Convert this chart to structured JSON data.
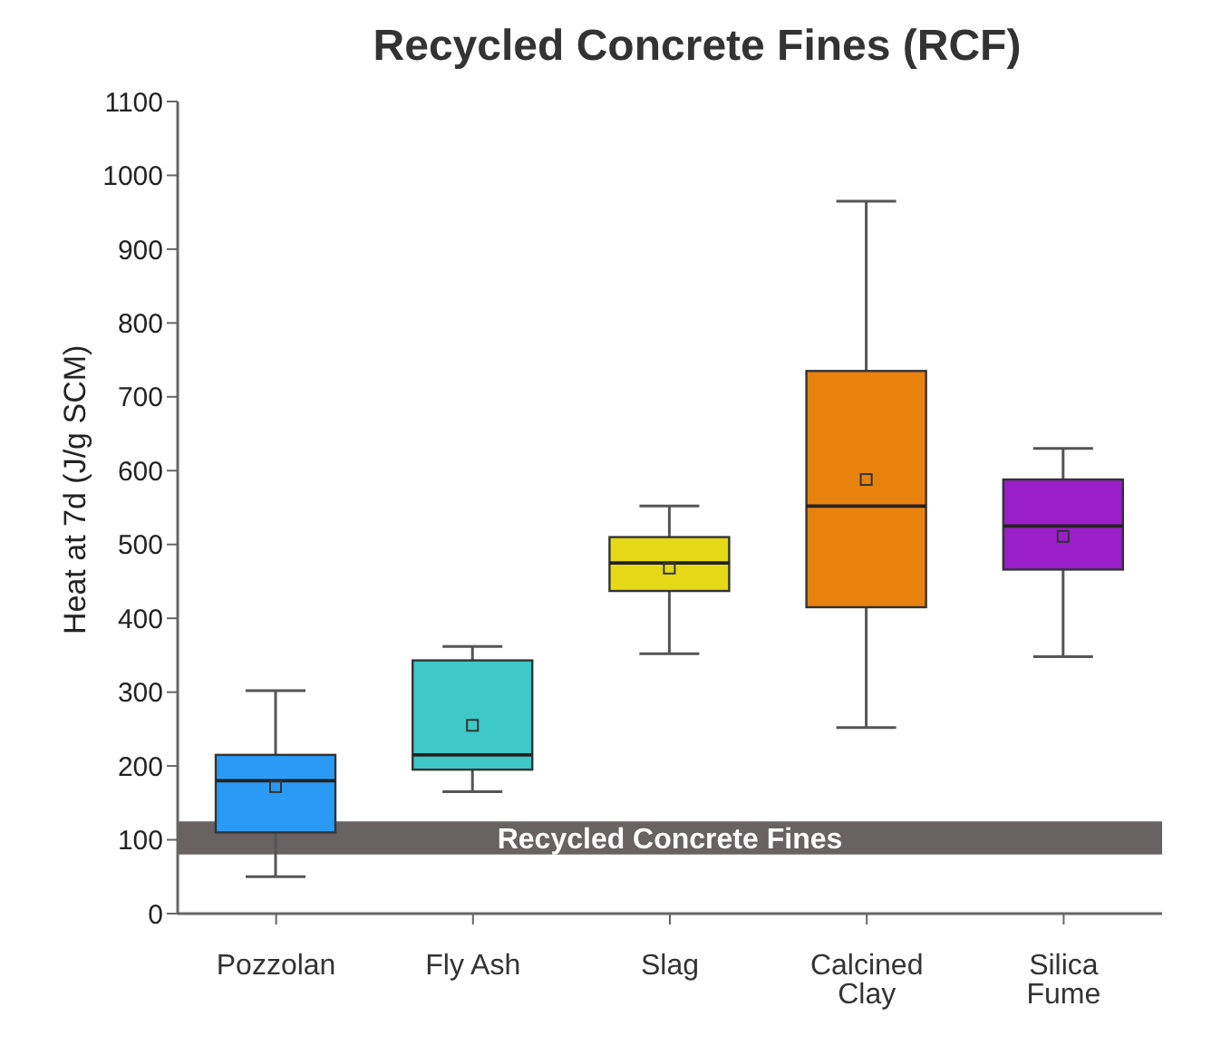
{
  "chart_data": {
    "type": "box",
    "title": "Recycled Concrete Fines (RCF)",
    "ylabel": "Heat at 7d (J/g SCM)",
    "categories": [
      "Pozzolan",
      "Fly Ash",
      "Slag",
      "Calcined Clay",
      "Silica Fume"
    ],
    "colors": [
      "#2b9af5",
      "#3ec8c8",
      "#e5d817",
      "#e8820f",
      "#9b1fc8"
    ],
    "boxes": [
      {
        "low": 50,
        "q1": 110,
        "median": 180,
        "q3": 215,
        "high": 302,
        "mean": 172
      },
      {
        "low": 165,
        "q1": 195,
        "median": 215,
        "q3": 343,
        "high": 362,
        "mean": 255
      },
      {
        "low": 352,
        "q1": 437,
        "median": 475,
        "q3": 510,
        "high": 552,
        "mean": 468
      },
      {
        "low": 252,
        "q1": 415,
        "median": 552,
        "q3": 735,
        "high": 965,
        "mean": 588
      },
      {
        "low": 348,
        "q1": 466,
        "median": 525,
        "q3": 588,
        "high": 630,
        "mean": 511
      }
    ],
    "ylim": [
      0,
      1100
    ],
    "yticks": [
      0,
      100,
      200,
      300,
      400,
      500,
      600,
      700,
      800,
      900,
      1000,
      1100
    ],
    "bands": [
      {
        "axis": "y",
        "from": 80,
        "to": 125,
        "label": "Recycled Concrete Fines",
        "color": "#686262"
      }
    ]
  }
}
